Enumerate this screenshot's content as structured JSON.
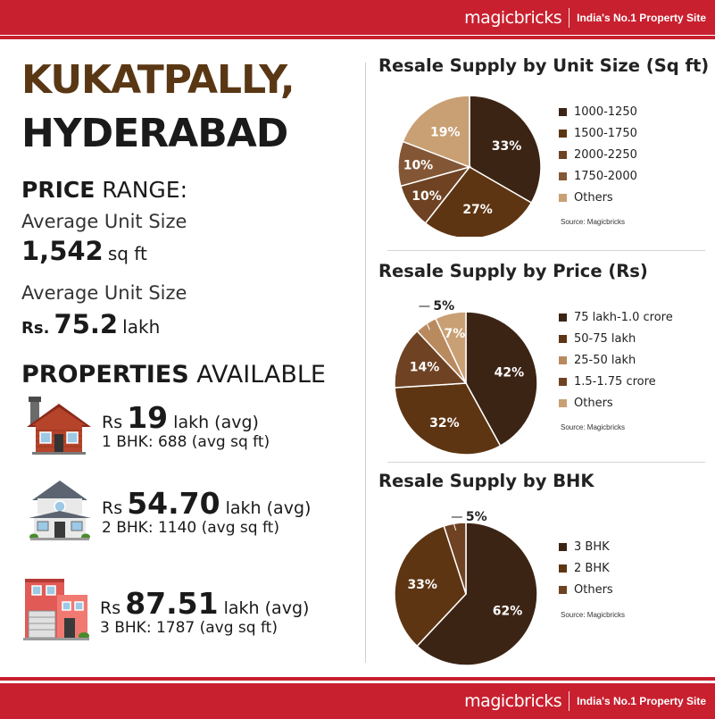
{
  "brand": {
    "logo": "magicbricks",
    "tagline": "India's No.1 Property Site"
  },
  "colors": {
    "brand_red": "#c8202f",
    "dark_brown": "#3c2415",
    "mid_brown": "#5e3512",
    "brown": "#7d4a22",
    "tan": "#c9a074",
    "city_brown": "#5a3714"
  },
  "location": {
    "line1": "KUKATPALLY,",
    "line2": "HYDERABAD"
  },
  "price_range": {
    "heading_bold": "PRICE",
    "heading_rest": " RANGE:",
    "unit_size_label": "Average Unit Size",
    "unit_size_value": "1,542",
    "unit_size_unit": "sq ft",
    "price_label": "Average Unit Size",
    "price_prefix": "Rs.",
    "price_value": "75.2",
    "price_unit": "lakh"
  },
  "properties": {
    "heading_bold": "PROPERTIES",
    "heading_rest": " AVAILABLE",
    "items": [
      {
        "prefix": "Rs",
        "price": "19",
        "suffix": " lakh (avg)",
        "detail": "1 BHK: 688 (avg sq ft)",
        "icon": "house-1bhk-icon"
      },
      {
        "prefix": "Rs",
        "price": "54.70",
        "suffix": " lakh (avg)",
        "detail": "2 BHK: 1140 (avg sq ft)",
        "icon": "house-2bhk-icon"
      },
      {
        "prefix": "Rs",
        "price": "87.51",
        "suffix": " lakh (avg)",
        "detail": "3 BHK: 1787 (avg sq ft)",
        "icon": "house-3bhk-icon"
      }
    ]
  },
  "chart_data": [
    {
      "type": "pie",
      "title": "Resale Supply by Unit Size (Sq ft)",
      "source": "Source: Magicbricks",
      "slices": [
        {
          "label": "1000-1250",
          "value": 33,
          "text": "33%",
          "color": "#3c2415"
        },
        {
          "label": "1500-1750",
          "value": 27,
          "text": "27%",
          "color": "#5e3512"
        },
        {
          "label": "2000-2250",
          "value": 10,
          "text": "10%",
          "color": "#6e4222"
        },
        {
          "label": "1750-2000",
          "value": 10,
          "text": "10%",
          "color": "#835736"
        },
        {
          "label": "Others",
          "value": 19,
          "text": "19%",
          "color": "#c9a074"
        }
      ]
    },
    {
      "type": "pie",
      "title": "Resale Supply by Price (Rs)",
      "source": "Source: Magicbricks",
      "slices": [
        {
          "label": "75 lakh-1.0 crore",
          "value": 42,
          "text": "42%",
          "color": "#3c2415"
        },
        {
          "label": "50-75 lakh",
          "value": 32,
          "text": "32%",
          "color": "#5e3512"
        },
        {
          "label": "1.5-1.75 crore",
          "value": 14,
          "text": "14%",
          "color": "#6e4222"
        },
        {
          "label": "25-50 lakh",
          "value": 5,
          "text": "5%",
          "color": "#b98a5e"
        },
        {
          "label": "Others",
          "value": 7,
          "text": "7%",
          "color": "#c9a074"
        }
      ],
      "legend_order": [
        "75 lakh-1.0 crore",
        "50-75 lakh",
        "25-50 lakh",
        "1.5-1.75 crore",
        "Others"
      ]
    },
    {
      "type": "pie",
      "title": "Resale Supply by BHK",
      "source": "Source: Magicbricks",
      "slices": [
        {
          "label": "3 BHK",
          "value": 62,
          "text": "62%",
          "color": "#3c2415"
        },
        {
          "label": "2 BHK",
          "value": 33,
          "text": "33%",
          "color": "#5e3512"
        },
        {
          "label": "Others",
          "value": 5,
          "text": "5%",
          "color": "#6e4222"
        }
      ]
    }
  ]
}
